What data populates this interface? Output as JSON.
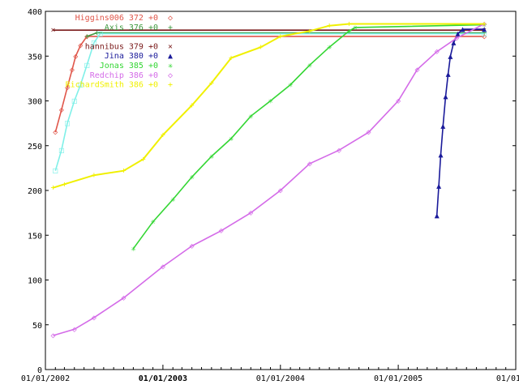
{
  "chart_data": {
    "type": "line",
    "title": "",
    "xlabel": "",
    "ylabel": "",
    "grid": false,
    "legend_position": "top-left",
    "xlim": [
      "2002-01-01",
      "2006-01-01"
    ],
    "ylim": [
      0,
      400
    ],
    "y_ticks": [
      0,
      50,
      100,
      150,
      200,
      250,
      300,
      350,
      400
    ],
    "x_ticks": [
      {
        "date": "2002-01-01",
        "label": "01/01/2002",
        "bold": false
      },
      {
        "date": "2003-01-01",
        "label": "01/01/2003",
        "bold": true
      },
      {
        "date": "2004-01-01",
        "label": "01/01/2004",
        "bold": false
      },
      {
        "date": "2005-01-01",
        "label": "01/01/2005",
        "bold": false
      },
      {
        "date": "2006-01-01",
        "label": "01/01/20",
        "bold": false
      }
    ],
    "series": [
      {
        "name": "Higgins006",
        "legend": "Higgins006 372 +0",
        "marker": "◇",
        "color": "#e0564a",
        "points": [
          [
            "2002-02-01",
            265
          ],
          [
            "2002-02-20",
            290
          ],
          [
            "2002-03-10",
            315
          ],
          [
            "2002-03-25",
            335
          ],
          [
            "2002-04-05",
            350
          ],
          [
            "2002-04-20",
            362
          ],
          [
            "2002-05-10",
            372
          ],
          [
            "2005-09-25",
            372
          ]
        ]
      },
      {
        "name": "Axis",
        "legend": "Axis 376 +0",
        "marker": "+",
        "color": "#3f9a3f",
        "points": [
          [
            "2002-05-10",
            372
          ],
          [
            "2002-06-10",
            376
          ],
          [
            "2005-09-25",
            376
          ]
        ]
      },
      {
        "name": "",
        "legend": "",
        "marker": "□",
        "color": "#7ff0e8",
        "points": [
          [
            "2002-02-01",
            222
          ],
          [
            "2002-02-20",
            245
          ],
          [
            "2002-03-10",
            275
          ],
          [
            "2002-04-01",
            300
          ],
          [
            "2002-04-20",
            318
          ],
          [
            "2002-05-10",
            340
          ],
          [
            "2002-06-01",
            365
          ],
          [
            "2002-06-20",
            375
          ],
          [
            "2005-09-25",
            375
          ]
        ]
      },
      {
        "name": "hannibus",
        "legend": "hannibus 379 +0",
        "marker": "×",
        "color": "#7a1a1a",
        "points": [
          [
            "2002-01-25",
            379
          ],
          [
            "2005-09-25",
            379
          ]
        ]
      },
      {
        "name": "Jina",
        "legend": "Jina 380 +0",
        "marker": "▲",
        "color": "#1a1a9a",
        "points": [
          [
            "2005-05-01",
            172
          ],
          [
            "2005-05-07",
            205
          ],
          [
            "2005-05-13",
            240
          ],
          [
            "2005-05-20",
            272
          ],
          [
            "2005-05-28",
            305
          ],
          [
            "2005-06-05",
            330
          ],
          [
            "2005-06-12",
            350
          ],
          [
            "2005-06-22",
            365
          ],
          [
            "2005-07-05",
            375
          ],
          [
            "2005-07-20",
            380
          ],
          [
            "2005-09-25",
            380
          ]
        ]
      },
      {
        "name": "Jonas",
        "legend": "Jonas 385 +0",
        "marker": "✳",
        "color": "#33d633",
        "points": [
          [
            "2002-10-01",
            135
          ],
          [
            "2002-12-01",
            165
          ],
          [
            "2003-02-01",
            190
          ],
          [
            "2003-04-01",
            215
          ],
          [
            "2003-06-01",
            238
          ],
          [
            "2003-08-01",
            258
          ],
          [
            "2003-10-01",
            283
          ],
          [
            "2003-12-01",
            300
          ],
          [
            "2004-02-01",
            318
          ],
          [
            "2004-04-01",
            340
          ],
          [
            "2004-06-01",
            360
          ],
          [
            "2004-08-01",
            378
          ],
          [
            "2004-08-20",
            382
          ],
          [
            "2005-09-25",
            385
          ]
        ]
      },
      {
        "name": "Redchip",
        "legend": "Redchip 386 +0",
        "marker": "◇",
        "color": "#d46be8",
        "points": [
          [
            "2002-01-25",
            38
          ],
          [
            "2002-04-01",
            45
          ],
          [
            "2002-06-01",
            58
          ],
          [
            "2002-09-01",
            80
          ],
          [
            "2003-01-01",
            115
          ],
          [
            "2003-04-01",
            138
          ],
          [
            "2003-07-01",
            155
          ],
          [
            "2003-10-01",
            175
          ],
          [
            "2004-01-01",
            200
          ],
          [
            "2004-04-01",
            230
          ],
          [
            "2004-07-01",
            245
          ],
          [
            "2004-10-01",
            265
          ],
          [
            "2005-01-01",
            300
          ],
          [
            "2005-03-01",
            335
          ],
          [
            "2005-05-01",
            355
          ],
          [
            "2005-07-01",
            370
          ],
          [
            "2005-09-25",
            386
          ]
        ]
      },
      {
        "name": "RichardSmith",
        "legend": "RichardSmith 386 +0",
        "marker": "+",
        "color": "#f0f000",
        "points": [
          [
            "2002-01-25",
            203
          ],
          [
            "2002-03-01",
            207
          ],
          [
            "2002-06-01",
            217
          ],
          [
            "2002-09-01",
            222
          ],
          [
            "2002-11-01",
            235
          ],
          [
            "2003-01-01",
            262
          ],
          [
            "2003-04-01",
            295
          ],
          [
            "2003-06-01",
            320
          ],
          [
            "2003-08-01",
            348
          ],
          [
            "2003-11-01",
            360
          ],
          [
            "2004-01-01",
            372
          ],
          [
            "2004-04-01",
            378
          ],
          [
            "2004-06-01",
            384
          ],
          [
            "2004-08-01",
            386
          ],
          [
            "2005-09-25",
            386
          ]
        ]
      }
    ]
  }
}
